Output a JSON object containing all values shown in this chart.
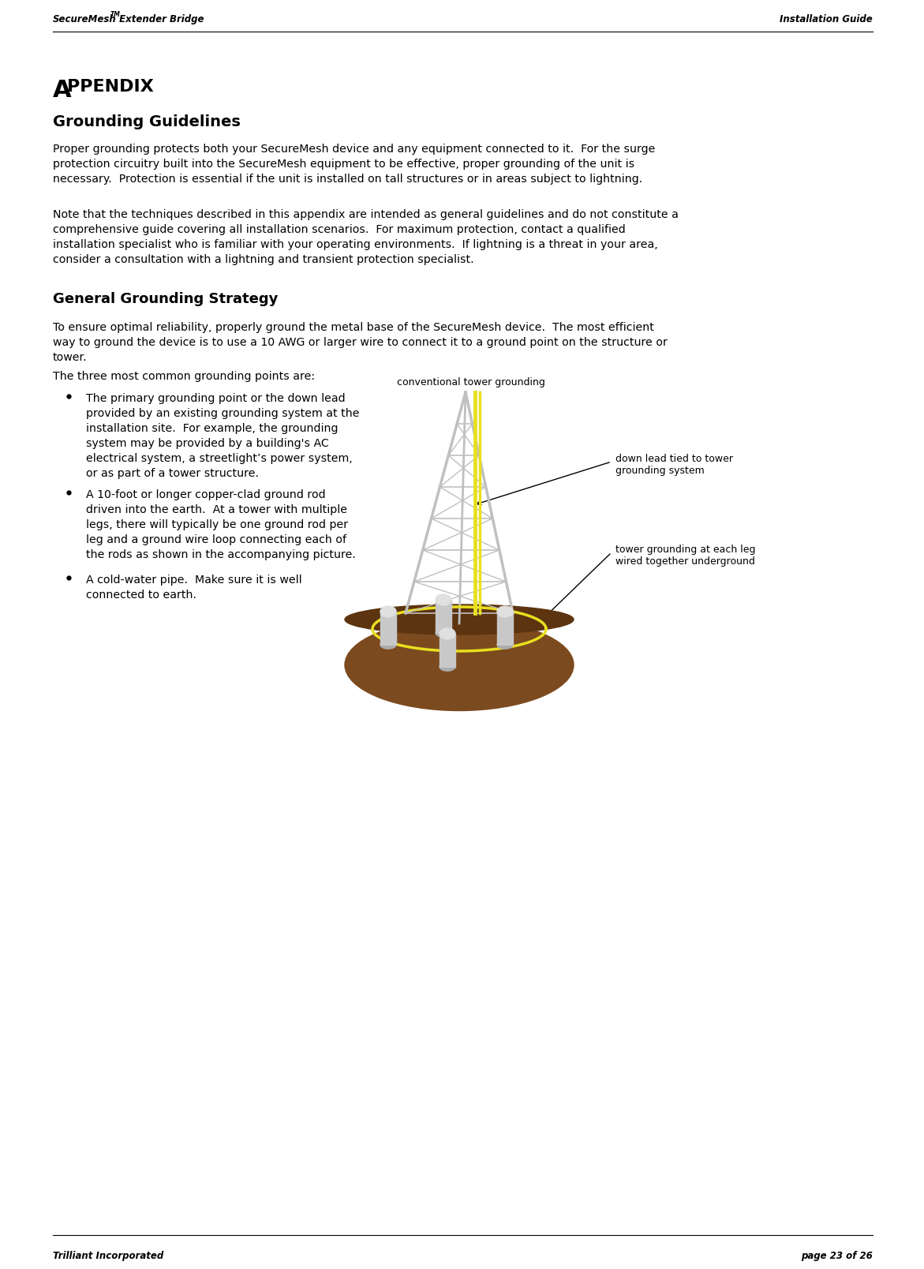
{
  "bg_color": "#ffffff",
  "text_color": "#000000",
  "header_left_1": "SecureMesh",
  "header_left_tm": "TM",
  "header_left_2": " Extender Bridge",
  "header_right": "Installation Guide",
  "footer_left": "Trilliant Incorporated",
  "footer_right": "page 23 of 26",
  "appendix_A": "A",
  "appendix_rest": "PPENDIX",
  "section1": "Grounding Guidelines",
  "section2": "General Grounding Strategy",
  "para1": "Proper grounding protects both your SecureMesh device and any equipment connected to it.  For the surge\nprotection circuitry built into the SecureMesh equipment to be effective, proper grounding of the unit is\nnecessary.  Protection is essential if the unit is installed on tall structures or in areas subject to lightning.",
  "para2": "Note that the techniques described in this appendix are intended as general guidelines and do not constitute a\ncomprehensive guide covering all installation scenarios.  For maximum protection, contact a qualified\ninstallation specialist who is familiar with your operating environments.  If lightning is a threat in your area,\nconsider a consultation with a lightning and transient protection specialist.",
  "para3": "To ensure optimal reliability, properly ground the metal base of the SecureMesh device.  The most efficient\nway to ground the device is to use a 10 AWG or larger wire to connect it to a ground point on the structure or\ntower.",
  "para4": "The three most common grounding points are:",
  "bullet1": "The primary grounding point or the down lead\nprovided by an existing grounding system at the\ninstallation site.  For example, the grounding\nsystem may be provided by a building's AC\nelectrical system, a streetlight’s power system,\nor as part of a tower structure.",
  "bullet2": "A 10-foot or longer copper-clad ground rod\ndriven into the earth.  At a tower with multiple\nlegs, there will typically be one ground rod per\nleg and a ground wire loop connecting each of\nthe rods as shown in the accompanying picture.",
  "bullet3": "A cold-water pipe.  Make sure it is well\nconnected to earth.",
  "label_top": "conventional tower grounding",
  "label_right1": "down lead tied to tower\ngrounding system",
  "label_right2": "tower grounding at each leg\nwired together underground",
  "tower_color": "#C0C0C0",
  "earth_color": "#7B4A1E",
  "earth_dark": "#5C3410",
  "earth_ring": "#8B6020",
  "yellow_wire": "#E8E020",
  "cyl_color": "#C8C8C8",
  "cyl_top": "#E0E0E0"
}
